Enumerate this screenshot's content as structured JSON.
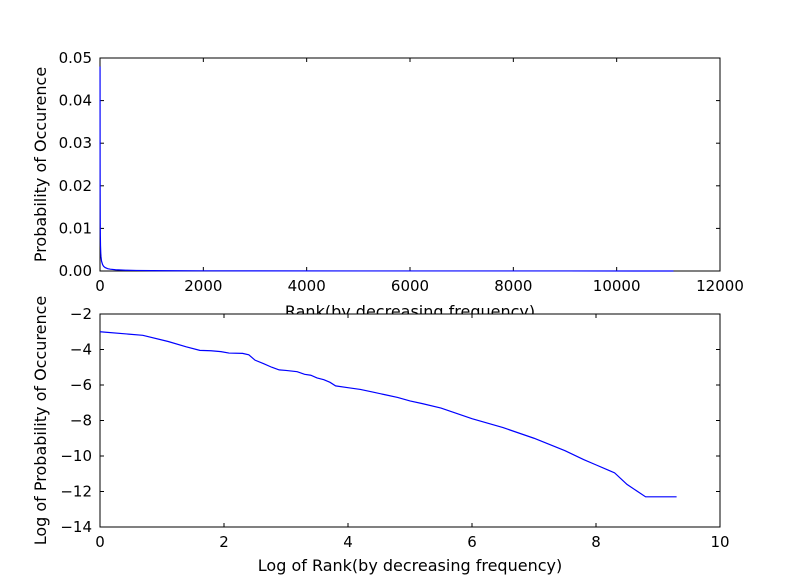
{
  "chart_data": [
    {
      "type": "line",
      "title": "",
      "xlabel": "Rank(by decreasing frequency)",
      "ylabel": "Probability of Occurence",
      "xlim": [
        0,
        12000
      ],
      "ylim": [
        0,
        0.05
      ],
      "xticks": [
        "0",
        "2000",
        "4000",
        "6000",
        "8000",
        "10000",
        "12000"
      ],
      "yticks": [
        "0.00",
        "0.01",
        "0.02",
        "0.03",
        "0.04",
        "0.05"
      ],
      "grid": false,
      "series_color": "#0000ff",
      "x": [
        1,
        2,
        3,
        5,
        7,
        10,
        15,
        20,
        30,
        50,
        70,
        100,
        150,
        200,
        300,
        500,
        700,
        1000,
        1500,
        2000,
        3000,
        5000,
        7000,
        9000,
        11000,
        11100
      ],
      "y": [
        0.048,
        0.026,
        0.018,
        0.0112,
        0.0082,
        0.0059,
        0.0042,
        0.0033,
        0.0023,
        0.0015,
        0.0011,
        0.0008,
        0.00055,
        0.00042,
        0.00029,
        0.00018,
        0.00013,
        9e-05,
        6e-05,
        4.5e-05,
        3e-05,
        1.7e-05,
        1.2e-05,
        9.5e-06,
        4.5e-06,
        4.5e-06
      ]
    },
    {
      "type": "line",
      "title": "",
      "xlabel": "Log of Rank(by decreasing frequency)",
      "ylabel": "Log of Probability of Occurence",
      "xlim": [
        0,
        10
      ],
      "ylim": [
        -14,
        -2
      ],
      "xticks": [
        "0",
        "2",
        "4",
        "6",
        "8",
        "10"
      ],
      "yticks": [
        "−14",
        "−12",
        "−10",
        "−8",
        "−6",
        "−4",
        "−2"
      ],
      "grid": false,
      "series_color": "#0000ff",
      "x": [
        0,
        0.69,
        1.1,
        1.39,
        1.61,
        1.79,
        1.95,
        2.08,
        2.3,
        2.4,
        2.5,
        2.64,
        2.77,
        2.89,
        3.0,
        3.18,
        3.3,
        3.4,
        3.5,
        3.61,
        3.71,
        3.8,
        4.0,
        4.2,
        4.4,
        4.6,
        4.8,
        5.0,
        5.2,
        5.5,
        6.0,
        6.5,
        7.0,
        7.5,
        7.8,
        8.0,
        8.2,
        8.3,
        8.5,
        8.8,
        9.0,
        9.3
      ],
      "y": [
        -3.0,
        -3.2,
        -3.55,
        -3.85,
        -4.05,
        -4.07,
        -4.12,
        -4.2,
        -4.22,
        -4.3,
        -4.6,
        -4.8,
        -5.0,
        -5.15,
        -5.18,
        -5.25,
        -5.4,
        -5.45,
        -5.6,
        -5.7,
        -5.85,
        -6.05,
        -6.15,
        -6.25,
        -6.4,
        -6.55,
        -6.7,
        -6.9,
        -7.05,
        -7.3,
        -7.9,
        -8.4,
        -9.0,
        -9.7,
        -10.2,
        -10.5,
        -10.8,
        -10.95,
        -11.6,
        -12.3,
        -12.3,
        -12.3
      ]
    }
  ]
}
